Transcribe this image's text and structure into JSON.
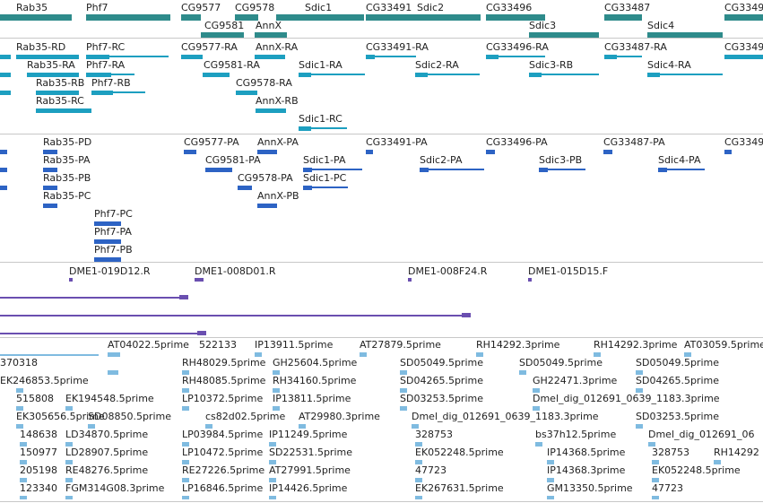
{
  "colors": {
    "gene": "#2e8b8b",
    "transcript_ra": "#1d9fc0",
    "transcript_pa": "#2d63c4",
    "clone": "#6a4fb0",
    "est": "#7fbbe0",
    "separator": "#c8c8c8"
  },
  "gene_track": {
    "labels": [
      "Rab35",
      "Phf7",
      "CG9577",
      "CG9578",
      "Sdic1",
      "CG33491",
      "Sdic2",
      "CG33496",
      "CG33487",
      "CG3349",
      "CG9581",
      "AnnX",
      "Sdic3",
      "Sdic4"
    ]
  },
  "transcript_track": {
    "labels": [
      "Rab35-RD",
      "Phf7-RC",
      "CG9577-RA",
      "AnnX-RA",
      "CG33491-RA",
      "CG33496-RA",
      "CG33487-RA",
      "CG3349",
      "Rab35-RA",
      "Phf7-RA",
      "CG9581-RA",
      "Sdic1-RA",
      "Sdic2-RA",
      "Sdic3-RB",
      "Sdic4-RA",
      "Rab35-RB",
      "Phf7-RB",
      "CG9578-RA",
      "Rab35-RC",
      "AnnX-RB",
      "Sdic1-RC"
    ]
  },
  "protein_track": {
    "labels": [
      "Rab35-PD",
      "CG9577-PA",
      "AnnX-PA",
      "CG33491-PA",
      "CG33496-PA",
      "CG33487-PA",
      "CG3349",
      "Rab35-PA",
      "CG9581-PA",
      "Sdic1-PA",
      "Sdic2-PA",
      "Sdic3-PB",
      "Sdic4-PA",
      "Rab35-PB",
      "CG9578-PA",
      "Sdic1-PC",
      "Rab35-PC",
      "AnnX-PB",
      "Phf7-PC",
      "Phf7-PA",
      "Phf7-PB"
    ]
  },
  "clone_track": {
    "labels": [
      "DME1-019D12.R",
      "DME1-008D01.R",
      "DME1-008F24.R",
      "DME1-015D15.F"
    ]
  },
  "est_track": {
    "labels": [
      "AT04022.5prime",
      "522133",
      "IP13911.5prime",
      "AT27879.5prime",
      "RH14292.3prime",
      "RH14292.3prime",
      "AT03059.5prime",
      "370318",
      "RH48029.5prime",
      "GH25604.5prime",
      "SD05049.5prime",
      "SD05049.5prime",
      "SD05049.5prime",
      "EK246853.5prime",
      "RH48085.5prime",
      "RH34160.5prime",
      "SD04265.5prime",
      "GH22471.3prime",
      "SD04265.5prime",
      "515808",
      "EK194548.5prime",
      "LP10372.5prime",
      "IP13811.5prime",
      "SD03253.5prime",
      "Dmel_dig_012691_0639_1183.3prime",
      "EK305656.5prime",
      "SD08850.5prime",
      "cs82d02.5prime",
      "AT29980.3prime",
      "Dmel_dig_012691_0639_1183.3prime",
      "SD03253.5prime",
      "148638",
      "LD34870.5prime",
      "LP03984.5prime",
      "IP11249.5prime",
      "328753",
      "bs37h12.5prime",
      "Dmel_dig_012691_06",
      "150977",
      "LD28907.5prime",
      "LP10472.5prime",
      "SD22531.5prime",
      "EK052248.5prime",
      "IP14368.5prime",
      "328753",
      "RH14292",
      "205198",
      "RE48276.5prime",
      "RE27226.5prime",
      "AT27991.5prime",
      "47723",
      "IP14368.3prime",
      "EK052248.5prime",
      "123340",
      "FGM314G08.3prime",
      "LP16846.5prime",
      "IP14426.5prime",
      "EK267631.5prime",
      "GM13350.5prime",
      "47723"
    ]
  }
}
